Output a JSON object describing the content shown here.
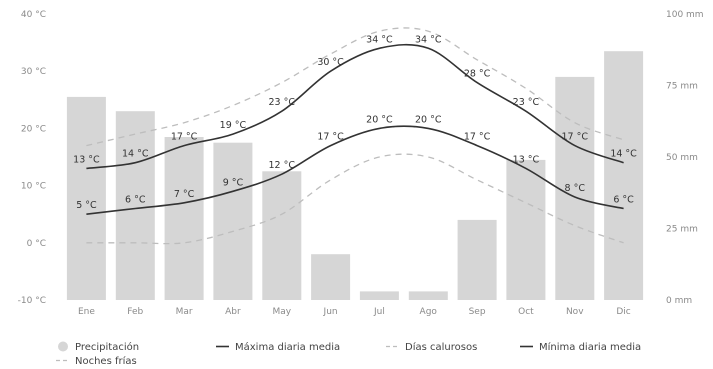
{
  "chart_data": {
    "type": "bar",
    "title": "",
    "categories": [
      "Ene",
      "Feb",
      "Mar",
      "Abr",
      "May",
      "Jun",
      "Jul",
      "Ago",
      "Sep",
      "Oct",
      "Nov",
      "Dic"
    ],
    "left_axis": {
      "unit": "°C",
      "ylim": [
        -10,
        40
      ],
      "ticks": [
        "-10 °C",
        "0 °C",
        "10 °C",
        "20 °C",
        "30 °C",
        "40 °C"
      ],
      "tick_values": [
        -10,
        0,
        10,
        20,
        30,
        40
      ]
    },
    "right_axis": {
      "unit": "mm",
      "ylim": [
        0,
        100
      ],
      "ticks": [
        "0 mm",
        "25 mm",
        "50 mm",
        "75 mm",
        "100 mm"
      ],
      "tick_values": [
        0,
        25,
        50,
        75,
        100
      ]
    },
    "series": [
      {
        "name": "Precipitación",
        "type": "bar",
        "axis": "right",
        "color": "#d6d6d6",
        "values": [
          71,
          66,
          57,
          55,
          45,
          16,
          3,
          3,
          28,
          49,
          78,
          87
        ]
      },
      {
        "name": "Máxima diaria media",
        "type": "line",
        "axis": "left",
        "color": "#333333",
        "values": [
          13,
          14,
          17,
          19,
          23,
          30,
          34,
          34,
          28,
          23,
          17,
          14
        ],
        "labels": [
          "13 °C",
          "14 °C",
          "17 °C",
          "19 °C",
          "23 °C",
          "30 °C",
          "34 °C",
          "34 °C",
          "28 °C",
          "23 °C",
          "17 °C",
          "14 °C"
        ]
      },
      {
        "name": "Mínima diaria media",
        "type": "line",
        "axis": "left",
        "color": "#333333",
        "values": [
          5,
          6,
          7,
          9,
          12,
          17,
          20,
          20,
          17,
          13,
          8,
          6
        ],
        "labels": [
          "5 °C",
          "6 °C",
          "7 °C",
          "9 °C",
          "12 °C",
          "17 °C",
          "20 °C",
          "20 °C",
          "17 °C",
          "13 °C",
          "8 °C",
          "6 °C"
        ]
      },
      {
        "name": "Días calurosos",
        "type": "line",
        "axis": "left",
        "dashed": true,
        "color": "#bdbdbd",
        "values": [
          17,
          19,
          21,
          24,
          28,
          33,
          37,
          37,
          32,
          27,
          21,
          18
        ]
      },
      {
        "name": "Noches frías",
        "type": "line",
        "axis": "left",
        "dashed": true,
        "color": "#bdbdbd",
        "values": [
          0,
          0,
          0,
          2,
          5,
          11,
          15,
          15,
          11,
          7,
          3,
          0
        ]
      }
    ],
    "legend": {
      "placement": "bottom",
      "items": [
        "Precipitación",
        "Máxima diaria media",
        "Días calurosos",
        "Mínima diaria media",
        "Noches frías"
      ]
    },
    "grid": false
  }
}
